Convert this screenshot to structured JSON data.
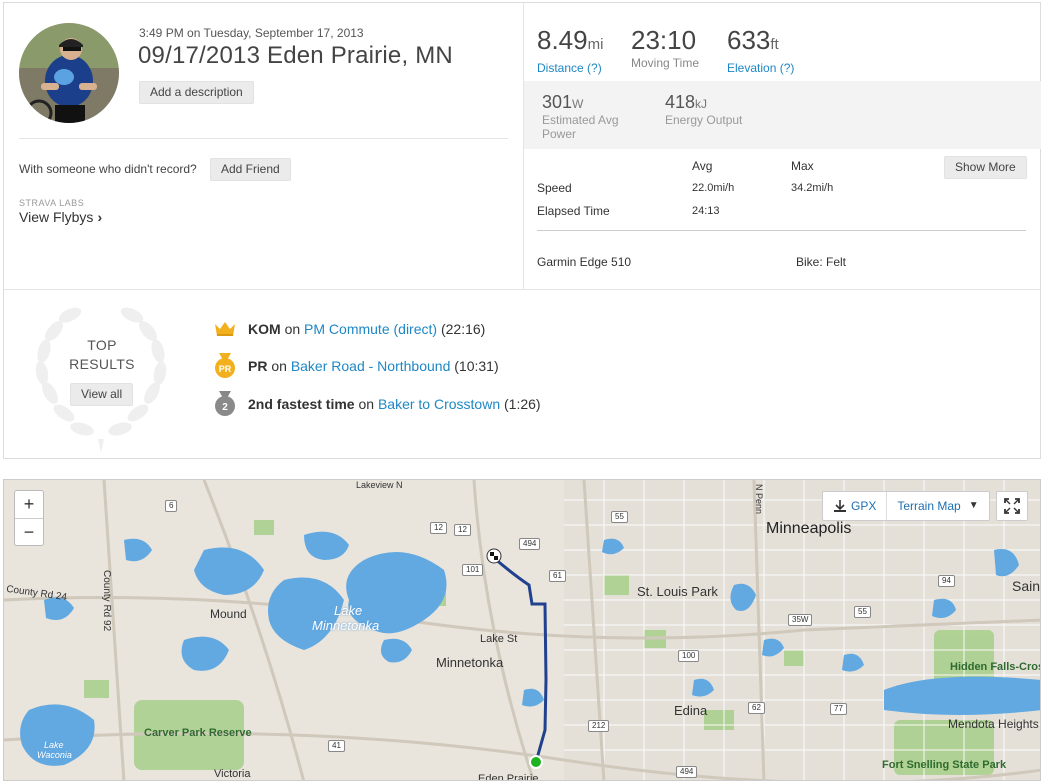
{
  "activity": {
    "datetime": "3:49 PM on Tuesday, September 17, 2013",
    "title": "09/17/2013 Eden Prairie, MN",
    "add_description": "Add a description",
    "with_someone": "With someone who didn't record?",
    "add_friend": "Add Friend",
    "labs_label": "STRAVA LABS",
    "view_flybys": "View Flybys",
    "chevron": "›"
  },
  "stats": {
    "distance": {
      "value": "8.49",
      "unit": "mi",
      "label": "Distance (?)"
    },
    "moving_time": {
      "value": "23:10",
      "label": "Moving Time"
    },
    "elevation": {
      "value": "633",
      "unit": "ft",
      "label": "Elevation (?)"
    },
    "power": {
      "value": "301",
      "unit": "W",
      "label": "Estimated Avg Power"
    },
    "energy": {
      "value": "418",
      "unit": "kJ",
      "label": "Energy Output"
    },
    "table": {
      "col_avg": "Avg",
      "col_max": "Max",
      "show_more": "Show More",
      "speed_label": "Speed",
      "speed_avg": "22.0mi/h",
      "speed_max": "34.2mi/h",
      "elapsed_label": "Elapsed Time",
      "elapsed_avg": "24:13"
    },
    "device": "Garmin Edge 510",
    "bike": "Bike: Felt"
  },
  "top_results": {
    "title_line1": "TOP",
    "title_line2": "RESULTS",
    "view_all": "View all",
    "items": [
      {
        "type": "KOM",
        "on": "on",
        "segment": "PM Commute (direct)",
        "time": "(22:16)",
        "icon": "crown-icon"
      },
      {
        "type": "PR",
        "on": "on",
        "segment": "Baker Road - Northbound",
        "time": "(10:31)",
        "icon": "pr-medal-icon"
      },
      {
        "type": "2nd fastest time",
        "on": "on",
        "segment": "Baker to Crosstown",
        "time": "(1:26)",
        "icon": "silver-medal-icon"
      }
    ]
  },
  "map": {
    "zoom_in": "+",
    "zoom_out": "−",
    "gpx": "GPX",
    "map_type": "Terrain Map",
    "labels": {
      "minneapolis": "Minneapolis",
      "st_louis_park": "St. Louis Park",
      "minnetonka": "Minnetonka",
      "lake_minnetonka_1": "Lake",
      "lake_minnetonka_2": "Minnetonka",
      "mound": "Mound",
      "lake_st": "Lake St",
      "edina": "Edina",
      "county_rd_92": "County Rd 92",
      "county_rd_24": "County Rd 24",
      "carver_park": "Carver Park Reserve",
      "lake_waconia_1": "Lake",
      "lake_waconia_2": "Waconia",
      "victoria": "Victoria",
      "eden_prairie": "Eden Prairie",
      "hidden_falls": "Hidden Falls-Crosby Farm Park",
      "mendota": "Mendota Heights",
      "fort_snelling": "Fort Snelling State Park",
      "sain": "Sain",
      "n_penn": "N Penn",
      "shoreview": "Lakeview N"
    },
    "shields": [
      "6",
      "12",
      "12",
      "101",
      "494",
      "61",
      "55",
      "94",
      "55",
      "35W",
      "100",
      "212",
      "62",
      "77",
      "41",
      "494"
    ],
    "colors": {
      "water": "#62a9e2",
      "park": "#a7cf8a",
      "route": "#21418f",
      "start": "#1fb41f"
    }
  },
  "colors": {
    "link": "#1e87c5",
    "accent": "#fc4c02"
  }
}
